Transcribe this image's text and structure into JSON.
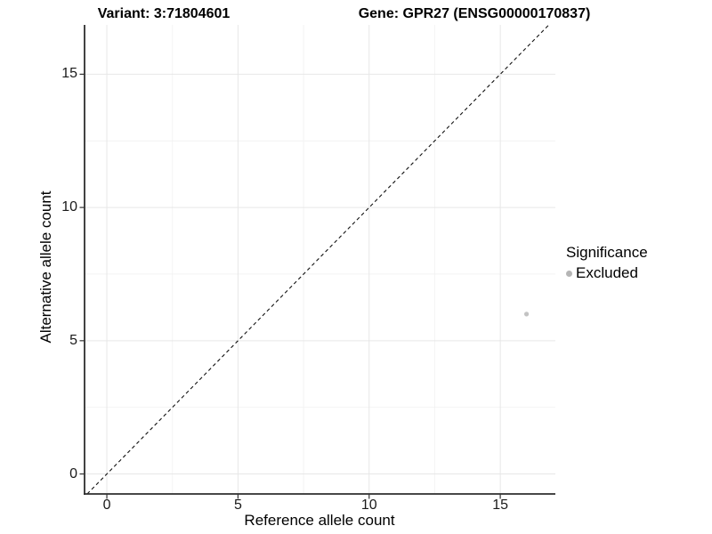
{
  "chart_data": {
    "type": "scatter",
    "titles": {
      "left": "Variant: 3:71804601",
      "right": "Gene: GPR27 (ENSG00000170837)"
    },
    "xlabel": "Reference allele count",
    "ylabel": "Alternative allele count",
    "xlim": [
      -0.85,
      17.1
    ],
    "ylim": [
      -0.75,
      16.85
    ],
    "x_ticks": [
      0,
      5,
      10,
      15
    ],
    "y_ticks": [
      0,
      5,
      10,
      15
    ],
    "x_minor_ticks": [
      2.5,
      7.5,
      12.5
    ],
    "y_minor_ticks": [
      2.5,
      7.5,
      12.5
    ],
    "grid": true,
    "identity_line": {
      "style": "dashed",
      "equation": "y = x",
      "color": "#111111"
    },
    "points": [
      {
        "x": 16,
        "y": 6,
        "series": "Excluded",
        "color": "#c3c3c3",
        "radius": 2.6
      }
    ],
    "legend": {
      "title": "Significance",
      "position": "right",
      "items": [
        {
          "label": "Excluded",
          "color": "#b5b5b5"
        }
      ]
    },
    "colors": {
      "axis_line": "#2e2e2e",
      "tick_mark": "#333333",
      "grid_major": "#e7e7e7",
      "grid_minor": "#f2f2f2",
      "background": "#ffffff"
    }
  }
}
